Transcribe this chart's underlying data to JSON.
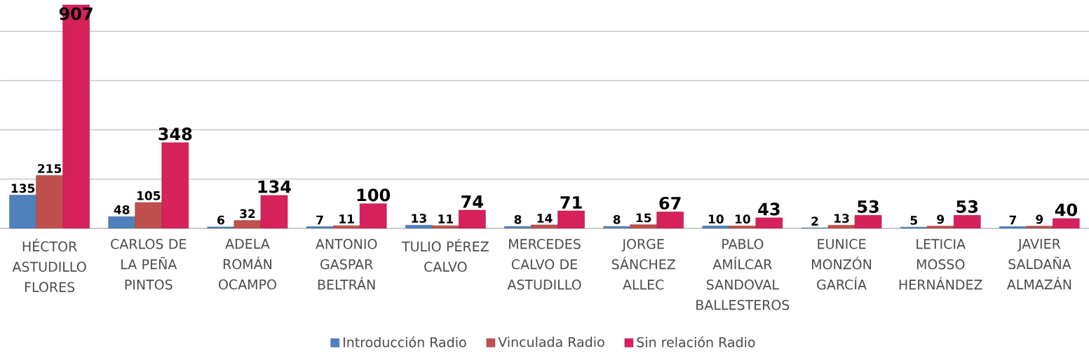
{
  "chart_data": {
    "type": "bar",
    "categories": [
      "HÉCTOR ASTUDILLO FLORES",
      "CARLOS DE LA PEÑA PINTOS",
      "ADELA ROMÁN OCAMPO",
      "ANTONIO GASPAR BELTRÁN",
      "TULIO PÉREZ CALVO",
      "MERCEDES CALVO DE ASTUDILLO",
      "JORGE SÁNCHEZ ALLEC",
      "PABLO AMÍLCAR SANDOVAL BALLESTEROS",
      "EUNICE MONZÓN GARCÍA",
      "LETICIA MOSSO HERNÁNDEZ",
      "JAVIER SALDAÑA ALMAZÁN"
    ],
    "series": [
      {
        "name": "Introducción Radio",
        "color": "#4f81bd",
        "values": [
          135,
          48,
          6,
          7,
          13,
          8,
          8,
          10,
          2,
          5,
          7
        ]
      },
      {
        "name": "Vinculada Radio",
        "color": "#c0504d",
        "values": [
          215,
          105,
          32,
          11,
          11,
          14,
          15,
          10,
          13,
          9,
          9
        ]
      },
      {
        "name": "Sin relación Radio",
        "color": "#d6215b",
        "values": [
          907,
          348,
          134,
          100,
          74,
          71,
          67,
          43,
          53,
          53,
          40
        ]
      }
    ],
    "ylim": [
      0,
      910
    ],
    "tick_labels": "x",
    "grid": "y",
    "data_labels": true,
    "legend": "bottom"
  }
}
